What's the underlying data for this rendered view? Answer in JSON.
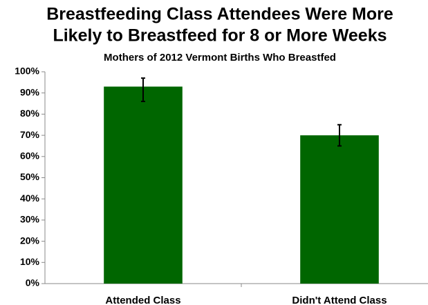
{
  "chart_data": {
    "type": "bar",
    "title": [
      "Breastfeeding Class Attendees Were More",
      "Likely to Breastfeed for 8 or More Weeks"
    ],
    "subtitle": "Mothers of 2012 Vermont Births Who Breastfed",
    "categories": [
      "Attended Class",
      "Didn't Attend Class"
    ],
    "values": [
      93,
      70
    ],
    "error_low": [
      86,
      65
    ],
    "error_high": [
      97,
      75
    ],
    "color": "#006600",
    "ylim": [
      0,
      100
    ],
    "yticks": [
      {
        "value": 0,
        "label": "0%"
      },
      {
        "value": 10,
        "label": "10%"
      },
      {
        "value": 20,
        "label": "20%"
      },
      {
        "value": 30,
        "label": "30%"
      },
      {
        "value": 40,
        "label": "40%"
      },
      {
        "value": 50,
        "label": "50%"
      },
      {
        "value": 60,
        "label": "60%"
      },
      {
        "value": 70,
        "label": "70%"
      },
      {
        "value": 80,
        "label": "80%"
      },
      {
        "value": 90,
        "label": "90%"
      },
      {
        "value": 100,
        "label": "100%"
      }
    ],
    "grid": false
  }
}
